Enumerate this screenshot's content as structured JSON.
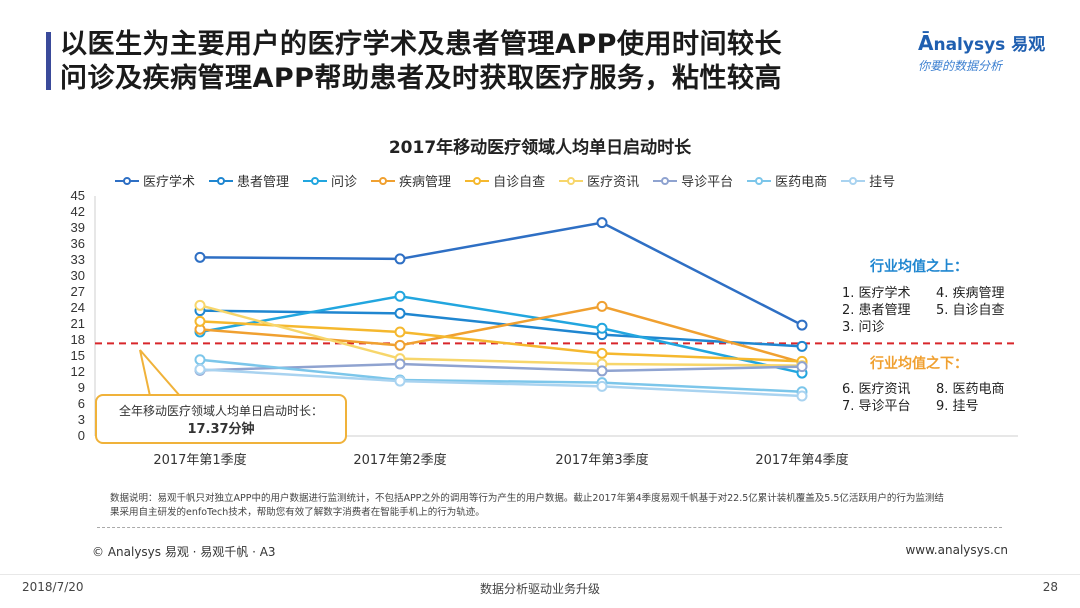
{
  "header": {
    "title_line1": "以医生为主要用户的医疗学术及患者管理APP使用时间较长",
    "title_line2": "问诊及疾病管理APP帮助患者及时获取医疗服务，粘性较高",
    "logo_main": "nalysys 易观",
    "logo_sub": "你要的数据分析"
  },
  "chart_data": {
    "type": "line",
    "title": "2017年移动医疗领域人均单日启动时长",
    "categories": [
      "2017年第1季度",
      "2017年第2季度",
      "2017年第3季度",
      "2017年第4季度"
    ],
    "ylim": [
      0,
      45
    ],
    "yticks": [
      0,
      3,
      6,
      9,
      12,
      15,
      18,
      21,
      24,
      27,
      30,
      33,
      36,
      39,
      42,
      45
    ],
    "average_line": 17.37,
    "series": [
      {
        "name": "医疗学术",
        "color": "#2e6fc4",
        "values": [
          33.5,
          33.2,
          40.0,
          20.8
        ]
      },
      {
        "name": "患者管理",
        "color": "#1f86d0",
        "values": [
          23.5,
          23.0,
          19.0,
          16.8
        ]
      },
      {
        "name": "问诊",
        "color": "#22a6df",
        "values": [
          19.5,
          26.2,
          20.2,
          11.8
        ]
      },
      {
        "name": "疾病管理",
        "color": "#f0a030",
        "values": [
          20.0,
          17.0,
          24.3,
          13.8
        ]
      },
      {
        "name": "自诊自查",
        "color": "#f5b82e",
        "values": [
          21.5,
          19.5,
          15.5,
          14.0
        ]
      },
      {
        "name": "医疗资讯",
        "color": "#f7d66b",
        "values": [
          24.5,
          14.5,
          13.5,
          13.2
        ]
      },
      {
        "name": "导诊平台",
        "color": "#8fa3d0",
        "values": [
          12.3,
          13.5,
          12.2,
          13.0
        ]
      },
      {
        "name": "医药电商",
        "color": "#7cc6ea",
        "values": [
          14.3,
          10.5,
          10.0,
          8.3
        ]
      },
      {
        "name": "挂号",
        "color": "#a9d3f0",
        "values": [
          12.5,
          10.3,
          9.3,
          7.5
        ]
      }
    ]
  },
  "callout": {
    "line1": "全年移动医疗领域人均单日启动时长：",
    "line2": "17.37分钟"
  },
  "side": {
    "above_title": "行业均值之上：",
    "above_items": [
      "1.  医疗学术",
      "4.  疾病管理",
      "2.  患者管理",
      "5.  自诊自查",
      "3.  问诊"
    ],
    "below_title": "行业均值之下：",
    "below_items": [
      "6.  医疗资讯",
      "8.  医药电商",
      "7.  导诊平台",
      "9.  挂号"
    ]
  },
  "note": {
    "line1": "数据说明：易观千帆只对独立APP中的用户数据进行监测统计，不包括APP之外的调用等行为产生的用户数据。截止2017年第4季度易观千帆基于对22.5亿累计装机覆盖及5.5亿活跃用户的行为监测结",
    "line2": "果采用自主研发的enfoTech技术，帮助您有效了解数字消费者在智能手机上的行为轨迹。"
  },
  "footer": {
    "copyright": "© Analysys 易观 · 易观千帆 · A3",
    "website": "www.analysys.cn",
    "date": "2018/7/20",
    "center": "数据分析驱动业务升级",
    "page": "28"
  }
}
